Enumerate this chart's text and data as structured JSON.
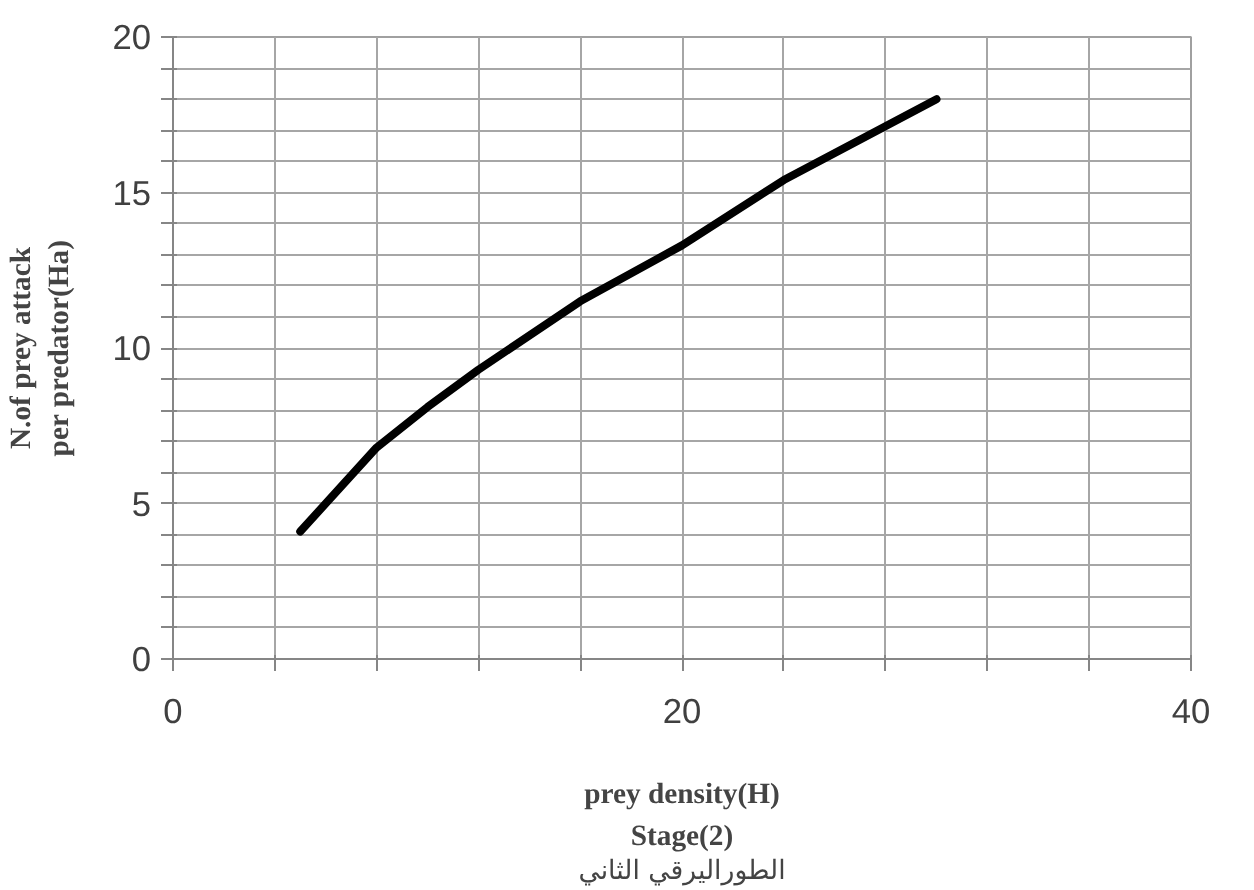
{
  "chart_data": {
    "type": "line",
    "xlabel": "prey density(H)",
    "ylabel": "N.of prey attack\nper predator(Ha)",
    "annotations": [
      "Stage(2)",
      "الطوراليرقي الثاني"
    ],
    "x": [
      5,
      8,
      10,
      12,
      16,
      20,
      24,
      30
    ],
    "series": [
      {
        "color": "#000000",
        "values": [
          4.1,
          6.8,
          8.1,
          9.3,
          11.5,
          13.3,
          15.4,
          18
        ]
      }
    ],
    "xlim": [
      0,
      40
    ],
    "ylim": [
      0,
      20
    ],
    "xticks": [
      0,
      {
        "value": 4,
        "label": null
      },
      {
        "value": 8,
        "label": null
      },
      {
        "value": 12,
        "label": null
      },
      {
        "value": 16,
        "label": null
      },
      20,
      {
        "value": 24,
        "label": null
      },
      {
        "value": 28,
        "label": null
      },
      {
        "value": 32,
        "label": null
      },
      {
        "value": 36,
        "label": null
      },
      40
    ],
    "yticks": [
      0,
      {
        "value": 1,
        "label": null
      },
      {
        "value": 2,
        "label": null
      },
      {
        "value": 3,
        "label": null
      },
      {
        "value": 4,
        "label": null
      },
      5,
      {
        "value": 6,
        "label": null
      },
      {
        "value": 7,
        "label": null
      },
      {
        "value": 8,
        "label": null
      },
      {
        "value": 9,
        "label": null
      },
      10,
      {
        "value": 11,
        "label": null
      },
      {
        "value": 12,
        "label": null
      },
      {
        "value": 13,
        "label": null
      },
      {
        "value": 14,
        "label": null
      },
      15,
      {
        "value": 16,
        "label": null
      },
      {
        "value": 17,
        "label": null
      },
      {
        "value": 18,
        "label": null
      },
      {
        "value": 19,
        "label": null
      },
      20
    ],
    "grid": true,
    "line_style": "solid",
    "marker": "none"
  }
}
